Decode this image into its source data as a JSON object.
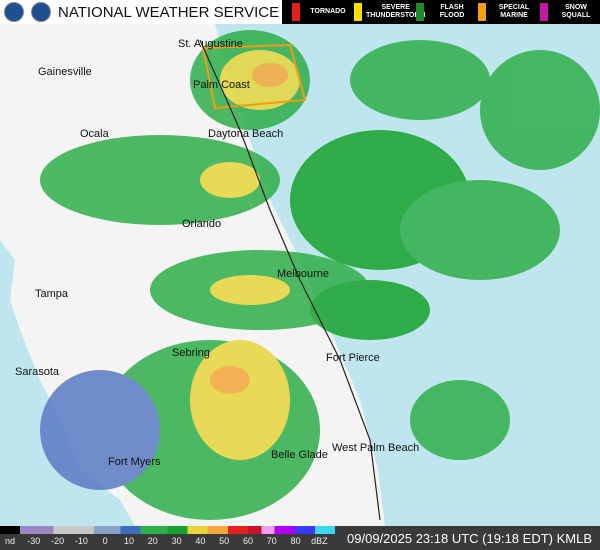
{
  "header": {
    "title": "NATIONAL WEATHER SERVICE"
  },
  "warnings": [
    "TORNADO",
    "SEVERE THUNDERSTORM",
    "FLASH FLOOD",
    "SPECIAL MARINE",
    "SNOW SQUALL"
  ],
  "cities": [
    "St. Augustine",
    "Gainesville",
    "Palm Coast",
    "Ocala",
    "Daytona Beach",
    "Orlando",
    "Melbourne",
    "Tampa",
    "Sebring",
    "Sarasota",
    "Fort Pierce",
    "West Palm Beach",
    "Belle Glade",
    "Fort Myers"
  ],
  "scale": {
    "labels": [
      "nd",
      -30,
      -20,
      -10,
      0,
      10,
      20,
      30,
      40,
      50,
      60,
      70,
      80,
      "dBZ"
    ]
  },
  "footer": {
    "timestamp": "09/09/2025 23:18 UTC (19:18 EDT) KMLB"
  }
}
